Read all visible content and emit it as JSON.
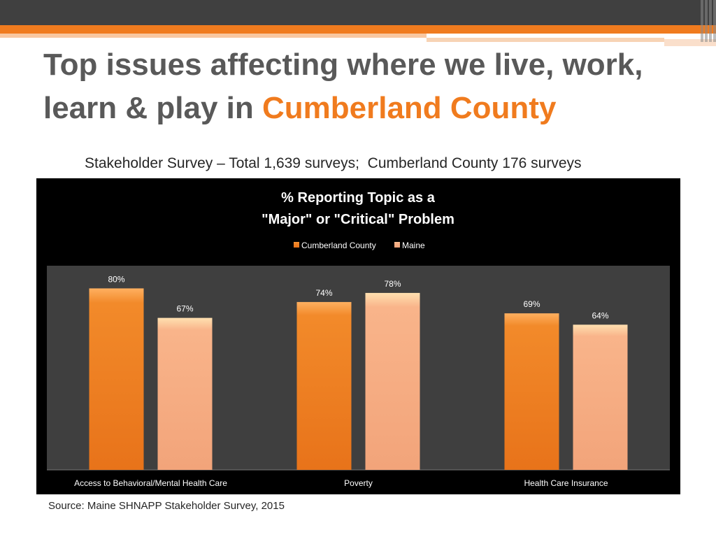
{
  "slide": {
    "title_part1": "Top issues affecting where we live, work,",
    "title_part2": "learn & play in ",
    "title_highlight": "Cumberland County",
    "subtitle": "Stakeholder Survey – Total 1,639 surveys;  Cumberland County 176 surveys",
    "source": "Source: Maine SHNAPP Stakeholder Survey, 2015"
  },
  "colors": {
    "accent": "#f07b1e",
    "dark_bar": "#404040",
    "chart_bg": "#000000",
    "plot_bg": "#3f3f3f",
    "series1": "#f28a2a",
    "series2": "#f9b48a"
  },
  "chart_data": {
    "type": "bar",
    "title_line1": "% Reporting Topic as a",
    "title_line2": "\"Major\" or \"Critical\" Problem",
    "categories": [
      "Access to Behavioral/Mental Health Care",
      "Poverty",
      "Health Care Insurance"
    ],
    "series": [
      {
        "name": "Cumberland County",
        "values": [
          80,
          74,
          69
        ],
        "labels": [
          "80%",
          "74%",
          "69%"
        ]
      },
      {
        "name": "Maine",
        "values": [
          67,
          78,
          64
        ],
        "labels": [
          "67%",
          "78%",
          "64%"
        ]
      }
    ],
    "ylim": [
      0,
      90
    ],
    "legend": "top-center",
    "grid": false
  }
}
